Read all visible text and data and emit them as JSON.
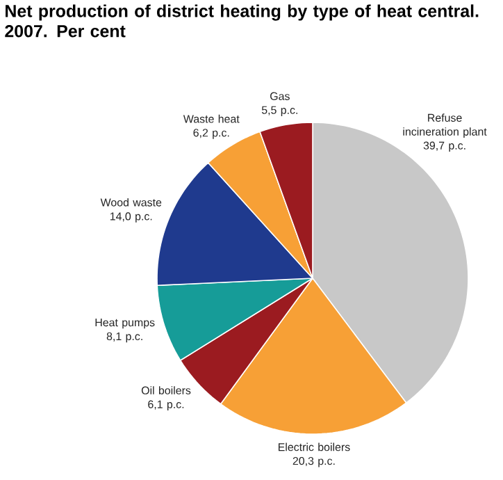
{
  "chart_data": {
    "type": "pie",
    "title": "Net production of district heating by type of heat central. 2007. Per cent",
    "categories": [
      "Refuse incineration plant",
      "Electric boilers",
      "Oil boilers",
      "Heat pumps",
      "Wood waste",
      "Waste heat",
      "Gas"
    ],
    "values": [
      39.7,
      20.3,
      6.1,
      8.1,
      14.0,
      6.2,
      5.5
    ],
    "colors": [
      "#c8c8c8",
      "#f7a036",
      "#9b1b20",
      "#169c98",
      "#1f3a8e",
      "#f7a036",
      "#9b1b20"
    ],
    "value_labels": [
      "39,7 p.c.",
      "20,3 p.c.",
      "6,1 p.c.",
      "8,1 p.c.",
      "14,0 p.c.",
      "6,2 p.c.",
      "5,5 p.c."
    ]
  }
}
